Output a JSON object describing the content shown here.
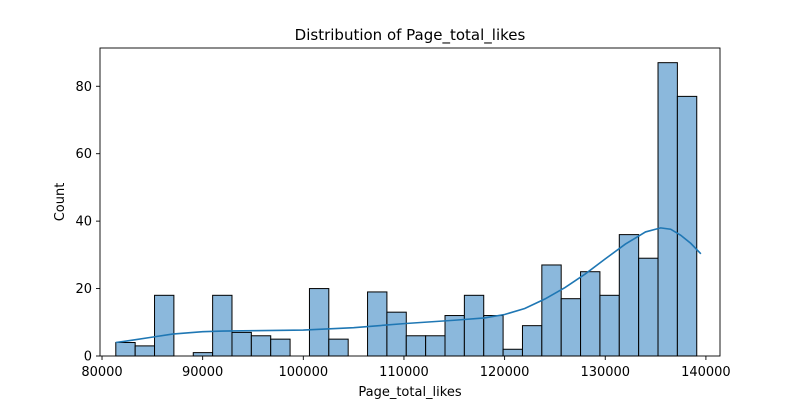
{
  "chart_data": {
    "type": "bar",
    "title": "Distribution of Page_total_likes",
    "xlabel": "Page_total_likes",
    "ylabel": "Count",
    "xlim": [
      79800,
      141400
    ],
    "ylim": [
      0,
      91.35
    ],
    "xticks": [
      80000,
      90000,
      100000,
      110000,
      120000,
      130000,
      140000
    ],
    "yticks": [
      0,
      20,
      40,
      60,
      80
    ],
    "grid": false,
    "legend": "none",
    "bin_start": 81370,
    "bin_width": 1924,
    "counts": [
      4,
      3,
      18,
      0,
      1,
      18,
      7,
      6,
      5,
      0,
      20,
      5,
      0,
      19,
      13,
      6,
      6,
      12,
      18,
      12,
      2,
      9,
      27,
      17,
      25,
      18,
      36,
      29,
      87,
      77
    ],
    "kde": {
      "x": [
        81370,
        83000,
        85000,
        87000,
        90000,
        92000,
        95000,
        100000,
        105000,
        110000,
        115000,
        118000,
        120000,
        122000,
        124000,
        126000,
        128000,
        130000,
        132000,
        134000,
        135500,
        136500,
        137500,
        138500,
        139500
      ],
      "y": [
        4,
        4.7,
        5.6,
        6.5,
        7.2,
        7.4,
        7.5,
        7.7,
        8.4,
        9.6,
        10.6,
        11.3,
        12.3,
        14.1,
        16.9,
        20.3,
        24.3,
        28.8,
        33.2,
        36.8,
        38.0,
        37.6,
        35.8,
        33.4,
        30.3
      ]
    },
    "colors": {
      "bar_fill": "#8bb8dc",
      "bar_edge": "#000000",
      "kde_line": "#1f77b4"
    }
  }
}
